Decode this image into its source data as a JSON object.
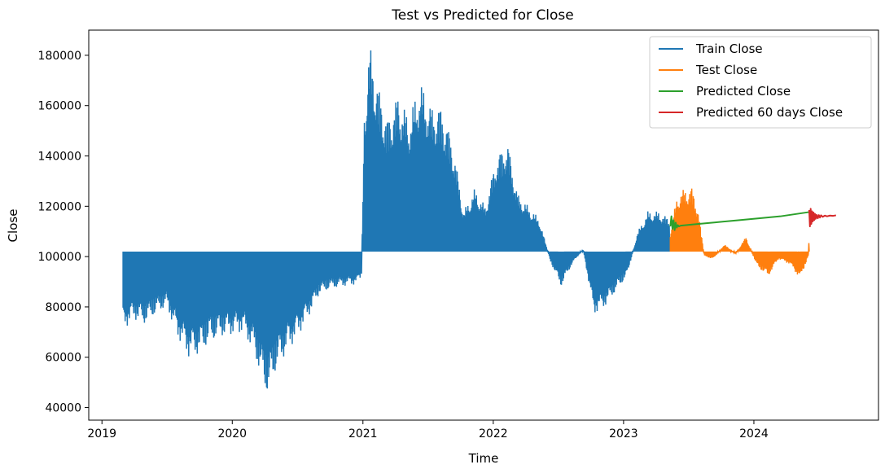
{
  "chart_data": {
    "type": "line",
    "title": "Test vs Predicted for Close",
    "xlabel": "Time",
    "ylabel": "Close",
    "xlim": [
      "2018-11-25",
      "2024-12-15"
    ],
    "ylim": [
      35000,
      190000
    ],
    "x_ticks": [
      "2019",
      "2020",
      "2021",
      "2022",
      "2023",
      "2024"
    ],
    "y_ticks": [
      40000,
      60000,
      80000,
      100000,
      120000,
      140000,
      160000,
      180000
    ],
    "y_tick_labels": [
      "40000",
      "60000",
      "80000",
      "100000",
      "120000",
      "140000",
      "160000",
      "180000"
    ],
    "legend_position": "upper right",
    "baseline": 102000,
    "series": [
      {
        "name": "Train Close",
        "color": "#1f77b4",
        "render": "oscillating-band",
        "x": [
          "2019-03-01",
          "2019-04-01",
          "2019-05-01",
          "2019-06-01",
          "2019-07-01",
          "2019-08-01",
          "2019-09-01",
          "2019-10-01",
          "2019-11-01",
          "2019-12-01",
          "2020-01-01",
          "2020-02-01",
          "2020-03-01",
          "2020-03-25",
          "2020-04-10",
          "2020-05-01",
          "2020-06-01",
          "2020-07-01",
          "2020-08-01",
          "2020-09-01",
          "2020-10-01",
          "2020-11-01",
          "2020-12-15",
          "2020-12-28",
          "2021-01-05",
          "2021-01-20",
          "2021-02-10",
          "2021-03-10",
          "2021-04-10",
          "2021-05-10",
          "2021-06-10",
          "2021-07-10",
          "2021-08-10",
          "2021-09-10",
          "2021-10-10",
          "2021-11-10",
          "2021-12-10",
          "2022-01-10",
          "2022-02-10",
          "2022-03-10",
          "2022-04-10",
          "2022-05-10",
          "2022-06-10",
          "2022-07-10",
          "2022-08-10",
          "2022-09-10",
          "2022-10-10",
          "2022-11-10",
          "2022-12-10",
          "2023-01-10",
          "2023-02-10",
          "2023-03-10",
          "2023-04-10",
          "2023-05-10"
        ],
        "values": [
          71000,
          75000,
          73000,
          77000,
          80000,
          68000,
          60000,
          61000,
          66000,
          68000,
          69000,
          70000,
          62000,
          50000,
          44000,
          54000,
          62000,
          68000,
          76000,
          85000,
          87000,
          88000,
          89000,
          92000,
          160000,
          185000,
          170000,
          155000,
          165000,
          155000,
          170000,
          160000,
          160000,
          145000,
          118000,
          127000,
          120000,
          140000,
          146000,
          125000,
          120000,
          115000,
          98000,
          88000,
          97000,
          103000,
          77000,
          80000,
          86000,
          92000,
          110000,
          118000,
          118000,
          115000
        ]
      },
      {
        "name": "Test Close",
        "color": "#ff7f0e",
        "render": "oscillating-band",
        "x": [
          "2023-05-12",
          "2023-06-01",
          "2023-06-20",
          "2023-07-10",
          "2023-07-28",
          "2023-08-15",
          "2023-09-10",
          "2023-10-10",
          "2023-11-10",
          "2023-12-10",
          "2024-01-10",
          "2024-02-10",
          "2024-03-10",
          "2024-04-10",
          "2024-05-10",
          "2024-06-01",
          "2024-06-04"
        ],
        "values": [
          110000,
          125000,
          127000,
          128000,
          120000,
          100000,
          99000,
          105000,
          101000,
          108000,
          96000,
          92000,
          99000,
          97000,
          91000,
          100000,
          110000
        ]
      },
      {
        "name": "Predicted Close",
        "color": "#2ca02c",
        "render": "line",
        "x": [
          "2023-05-12",
          "2023-05-15",
          "2023-05-18",
          "2023-05-21",
          "2023-05-24",
          "2023-05-27",
          "2023-05-30",
          "2023-06-02",
          "2023-06-05",
          "2023-06-10",
          "2023-07-15",
          "2023-09-15",
          "2023-11-15",
          "2024-01-15",
          "2024-03-15",
          "2024-06-04"
        ],
        "values": [
          112000,
          116000,
          111000,
          114500,
          110500,
          113500,
          111500,
          112500,
          112000,
          112300,
          112800,
          113600,
          114400,
          115200,
          116000,
          117700
        ]
      },
      {
        "name": "Predicted 60 days Close",
        "color": "#d62728",
        "render": "line",
        "x": [
          "2024-06-04",
          "2024-06-06",
          "2024-06-08",
          "2024-06-10",
          "2024-06-12",
          "2024-06-14",
          "2024-06-16",
          "2024-06-18",
          "2024-06-20",
          "2024-06-22",
          "2024-06-25",
          "2024-06-28",
          "2024-07-01",
          "2024-07-04",
          "2024-07-07",
          "2024-07-12",
          "2024-07-18",
          "2024-07-24",
          "2024-08-01",
          "2024-08-10",
          "2024-08-18"
        ],
        "values": [
          118500,
          112000,
          119000,
          113000,
          118000,
          114000,
          117500,
          114500,
          117000,
          115000,
          116600,
          115200,
          116500,
          115500,
          116400,
          115800,
          116300,
          116000,
          116300,
          116200,
          116400
        ]
      }
    ]
  }
}
